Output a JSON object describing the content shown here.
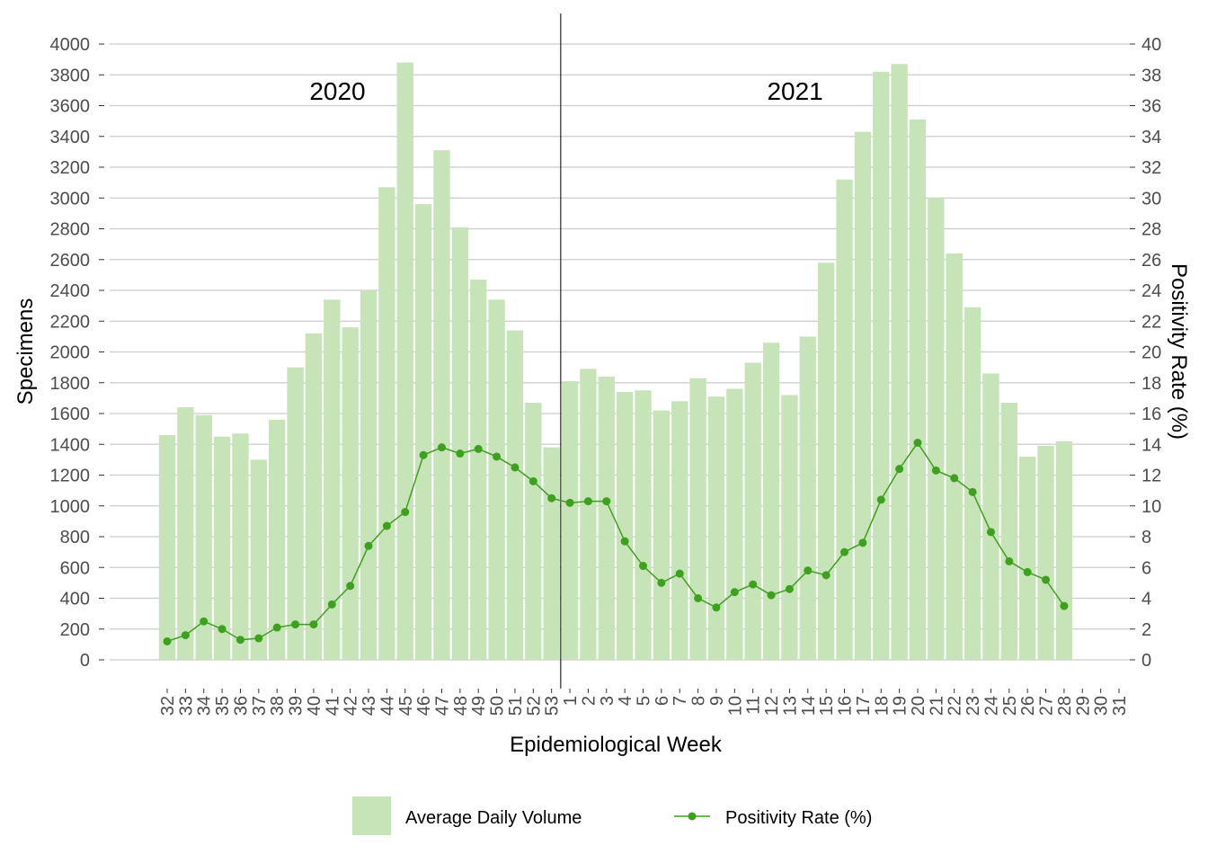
{
  "chart_data": {
    "type": "bar",
    "x_categories": [
      "32",
      "33",
      "34",
      "35",
      "36",
      "37",
      "38",
      "39",
      "40",
      "41",
      "42",
      "43",
      "44",
      "45",
      "46",
      "47",
      "48",
      "49",
      "50",
      "51",
      "52",
      "53",
      "1",
      "2",
      "3",
      "4",
      "5",
      "6",
      "7",
      "8",
      "9",
      "10",
      "11",
      "12",
      "13",
      "14",
      "15",
      "16",
      "17",
      "18",
      "19",
      "20",
      "21",
      "22",
      "23",
      "24",
      "25",
      "26",
      "27",
      "28",
      "29",
      "30",
      "31"
    ],
    "x_tick_labels": [
      "32",
      "33",
      "34",
      "35",
      "36",
      "37",
      "38",
      "39",
      "40",
      "41",
      "42",
      "43",
      "44",
      "45",
      "46",
      "47",
      "48",
      "49",
      "50",
      "51",
      "52",
      "53",
      "1",
      "2",
      "3",
      "4",
      "5",
      "6",
      "7",
      "8",
      "9",
      "10",
      "11",
      "12",
      "13",
      "14",
      "15",
      "16",
      "17",
      "18",
      "19",
      "20",
      "21",
      "22",
      "23",
      "24",
      "25",
      "26",
      "27",
      "28",
      "29",
      "30",
      "31"
    ],
    "xlabel": "Epidemiological Week",
    "ylabel": "Specimens",
    "y2label": "Positivity Rate (%)",
    "ylim": [
      0,
      4000
    ],
    "y2lim": [
      0,
      40
    ],
    "y_ticks": [
      0,
      200,
      400,
      600,
      800,
      1000,
      1200,
      1400,
      1600,
      1800,
      2000,
      2200,
      2400,
      2600,
      2800,
      3000,
      3200,
      3400,
      3600,
      3800,
      4000
    ],
    "y2_ticks": [
      0,
      2,
      4,
      6,
      8,
      10,
      12,
      14,
      16,
      18,
      20,
      22,
      24,
      26,
      28,
      30,
      32,
      34,
      36,
      38,
      40
    ],
    "grid": true,
    "legend_position": "bottom",
    "annotations": [
      {
        "text": "2020",
        "x": "42"
      },
      {
        "text": "2021",
        "x": "14"
      }
    ],
    "divider_x": "1",
    "series": [
      {
        "name": "Average Daily Volume",
        "type": "bar",
        "axis": "left",
        "color": "#c7e4b9",
        "values": [
          1460,
          1640,
          1590,
          1450,
          1470,
          1300,
          1560,
          1900,
          2120,
          2340,
          2160,
          2400,
          3070,
          3880,
          2960,
          3310,
          2810,
          2470,
          2340,
          2140,
          1670,
          1380,
          1810,
          1890,
          1840,
          1740,
          1750,
          1620,
          1680,
          1830,
          1710,
          1760,
          1930,
          2060,
          1720,
          2100,
          2580,
          3120,
          3430,
          3820,
          3870,
          3510,
          3000,
          2640,
          2290,
          1860,
          1670,
          1320,
          1390,
          1420,
          null,
          null,
          null
        ]
      },
      {
        "name": "Positivity Rate (%)",
        "type": "line",
        "axis": "right",
        "color": "#3da01e",
        "values": [
          1.2,
          1.6,
          2.5,
          2.0,
          1.3,
          1.4,
          2.1,
          2.3,
          2.3,
          3.6,
          4.8,
          7.4,
          8.7,
          9.6,
          13.3,
          13.8,
          13.4,
          13.7,
          13.2,
          12.5,
          11.6,
          10.5,
          10.2,
          10.3,
          10.3,
          7.7,
          6.1,
          5.0,
          5.6,
          4.0,
          3.4,
          4.4,
          4.9,
          4.2,
          4.6,
          5.8,
          5.5,
          7.0,
          7.6,
          10.4,
          12.4,
          14.1,
          12.3,
          11.8,
          10.9,
          8.3,
          6.4,
          5.7,
          5.2,
          3.5,
          null,
          null,
          null
        ]
      }
    ]
  }
}
